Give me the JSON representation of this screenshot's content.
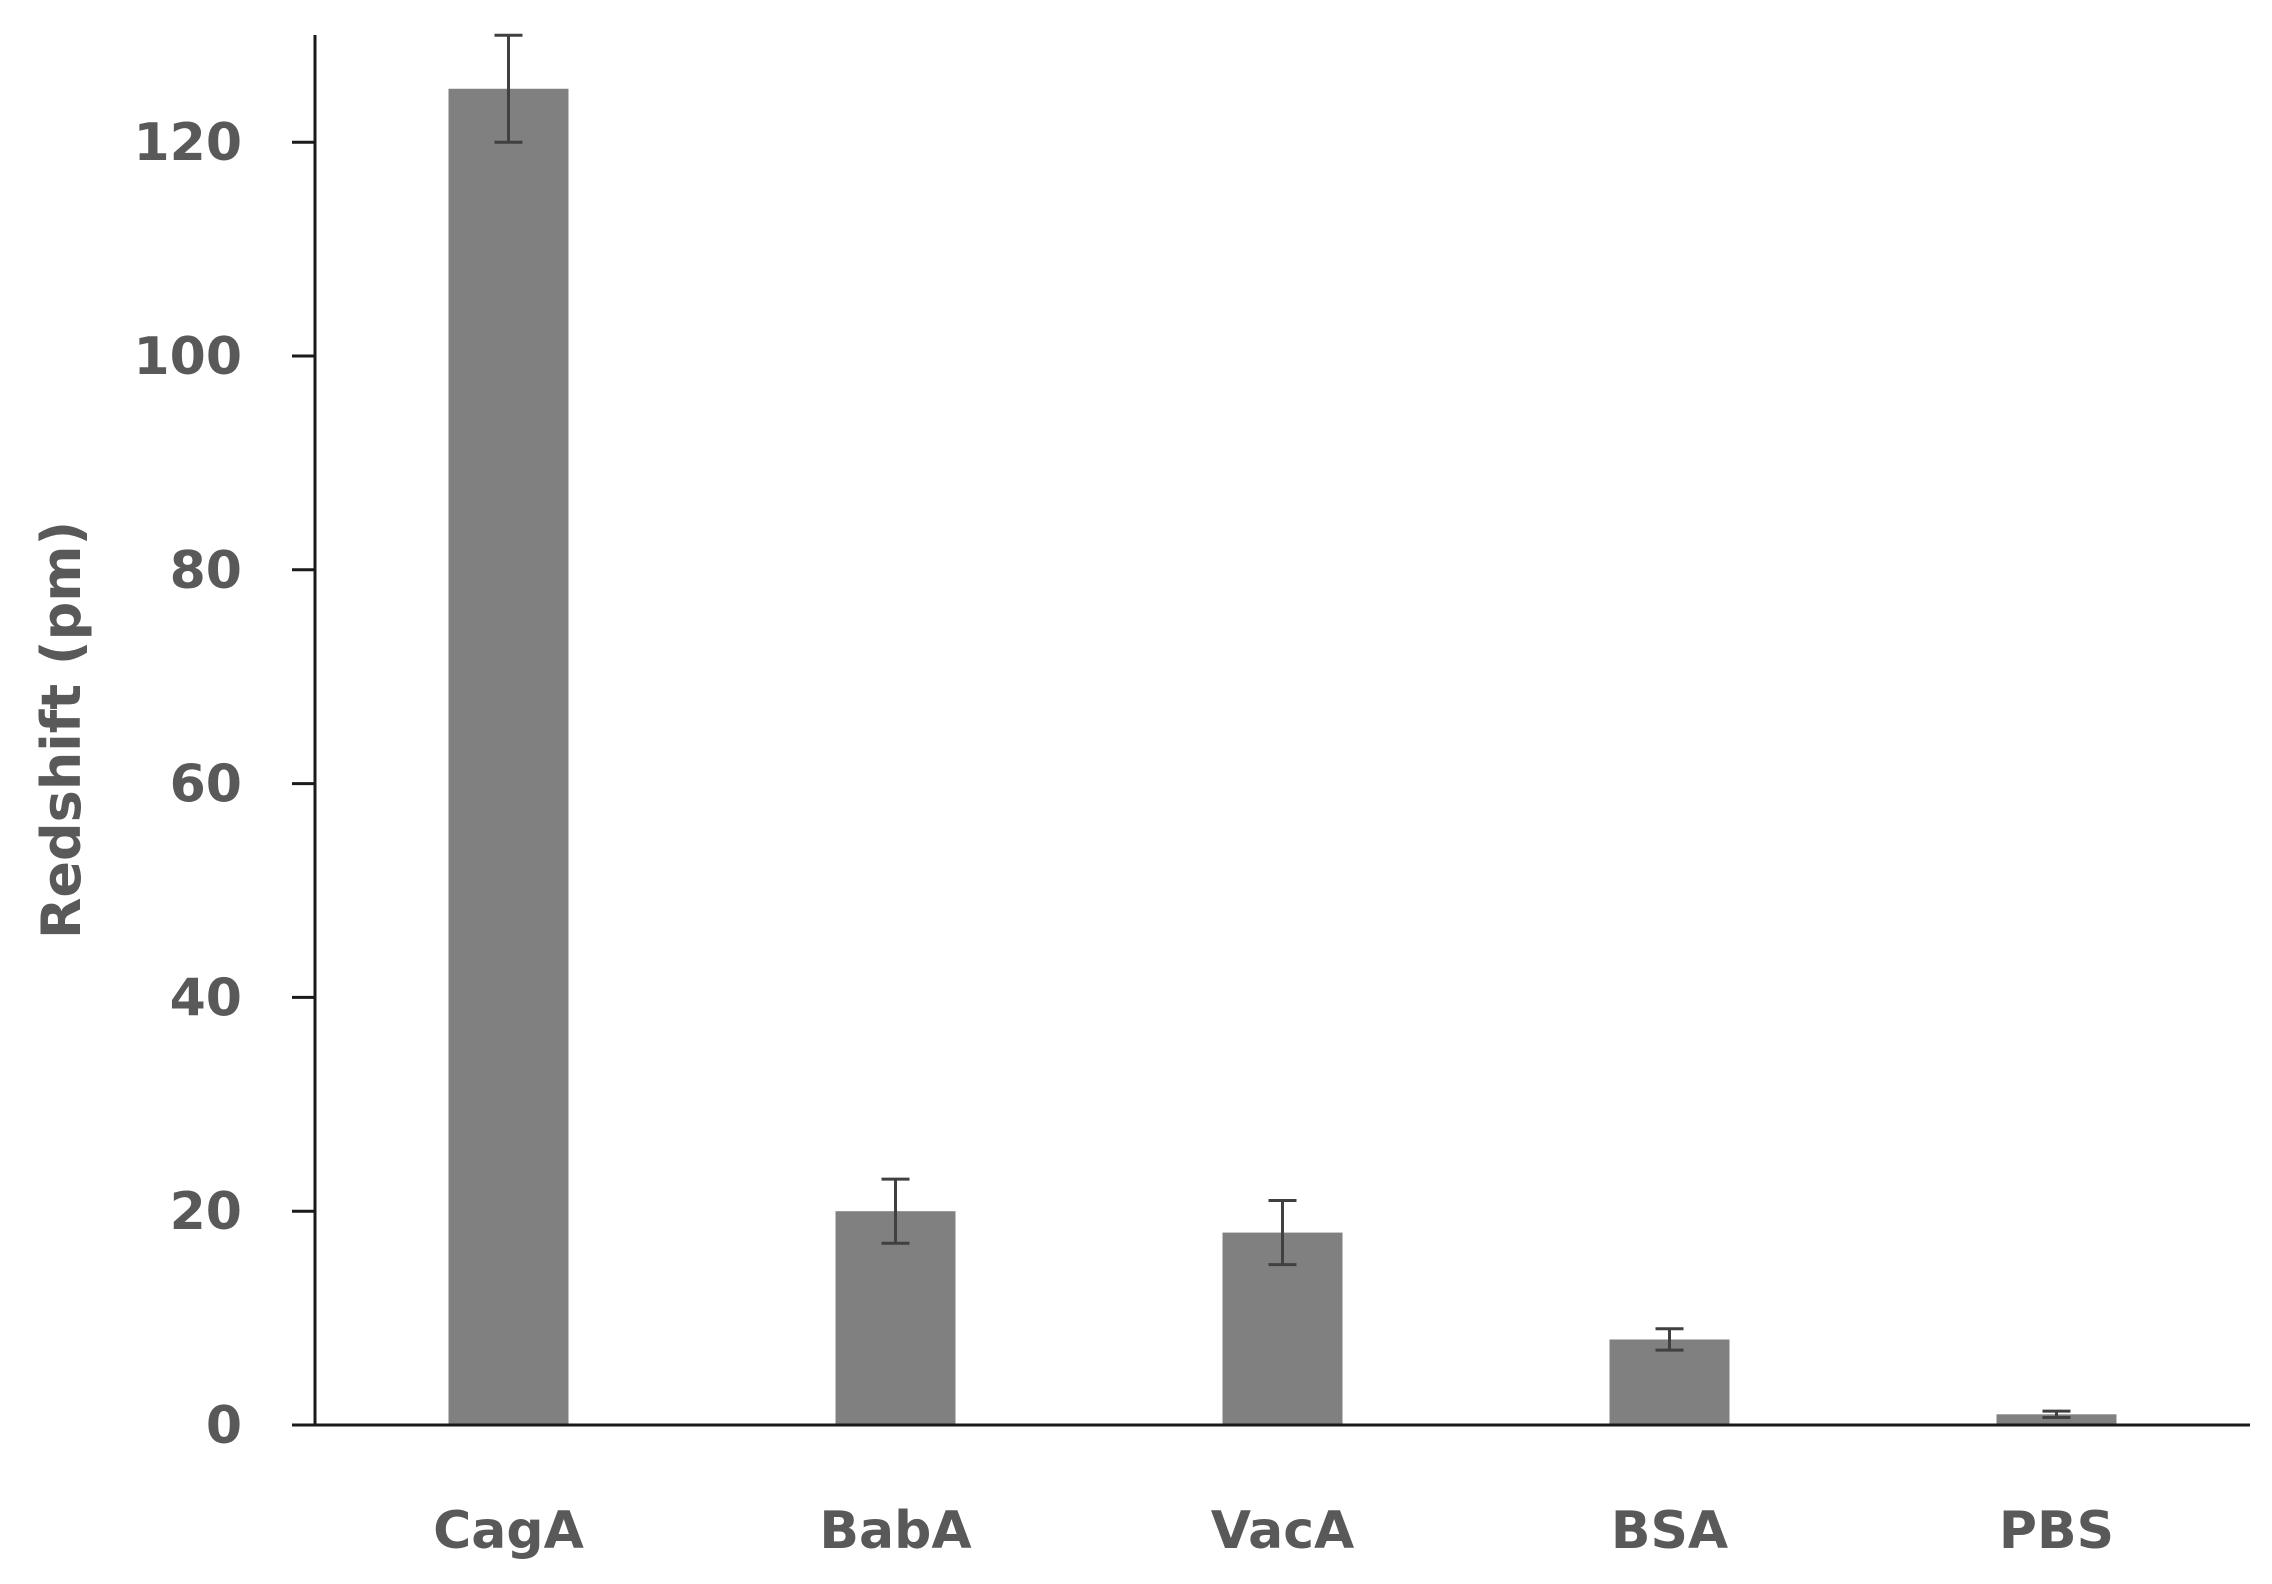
{
  "chart_data": {
    "type": "bar",
    "title": "",
    "xlabel": "",
    "ylabel": "Redshift (pm)",
    "categories": [
      "CagA",
      "BabA",
      "VacA",
      "BSA",
      "PBS"
    ],
    "values": [
      125,
      20,
      18,
      8,
      1
    ],
    "errors": [
      5,
      3,
      3,
      1,
      0.3
    ],
    "ylim": [
      0,
      130
    ],
    "yticks": [
      0,
      20,
      40,
      60,
      80,
      100,
      120
    ],
    "grid": false,
    "legend": "none",
    "colors": {
      "bar": "#808080",
      "error_bar": "#404040",
      "axis": "#1a1a1a",
      "text": "#595959"
    }
  }
}
